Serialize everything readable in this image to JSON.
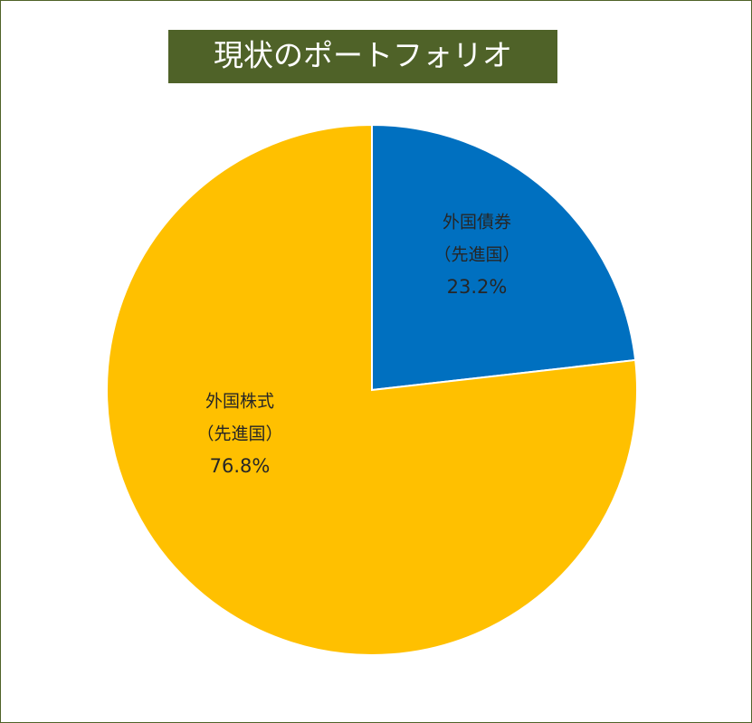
{
  "chart_data": {
    "type": "pie",
    "title": "現状のポートフォリオ",
    "categories": [
      [
        "外国債券",
        "（先進国）"
      ],
      [
        "外国株式",
        "（先進国）"
      ]
    ],
    "values": [
      23.2,
      76.8
    ],
    "value_labels": [
      "23.2%",
      "76.8%"
    ],
    "colors": [
      "#0070c0",
      "#ffc000"
    ]
  }
}
